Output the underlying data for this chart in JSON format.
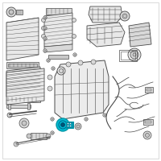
{
  "bg_color": "#ffffff",
  "border_color": "#aaaaaa",
  "line_color": "#4a4a4a",
  "line_color2": "#666666",
  "highlight_color": "#00bcd4",
  "highlight_color2": "#0097a7",
  "figsize": [
    2.0,
    2.0
  ],
  "dpi": 100,
  "component_fill": "#e8e8e8",
  "component_fill2": "#d8d8d8",
  "component_fill3": "#c8c8c8"
}
